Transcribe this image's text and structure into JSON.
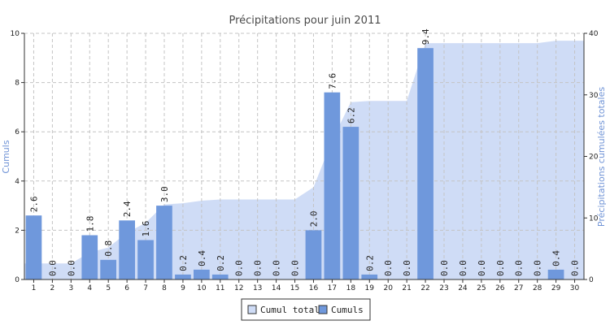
{
  "chart_data": {
    "type": "bar",
    "title": "Précipitations pour juin 2011",
    "ylabel_left": "Cumuls",
    "ylabel_right": "Précipitations cumulées totales",
    "ylim_left": [
      0,
      10
    ],
    "ylim_right": [
      0,
      40
    ],
    "yticks_left": [
      0,
      2,
      4,
      6,
      8,
      10
    ],
    "yticks_right": [
      0,
      10,
      20,
      30,
      40
    ],
    "grid": true,
    "legend_position": "bottom-center",
    "colors": {
      "bars": "#6f98dc",
      "area": "#cfdcf6",
      "axis_title": "#6f93d6"
    },
    "categories": [
      "1",
      "2",
      "3",
      "4",
      "5",
      "6",
      "7",
      "8",
      "9",
      "10",
      "11",
      "12",
      "13",
      "14",
      "15",
      "16",
      "17",
      "18",
      "19",
      "20",
      "21",
      "22",
      "23",
      "24",
      "25",
      "26",
      "27",
      "28",
      "29",
      "30"
    ],
    "series": [
      {
        "name": "Cumul total",
        "type": "area",
        "axis": "right",
        "values": [
          2.6,
          2.6,
          2.6,
          4.4,
          5.2,
          7.6,
          9.2,
          12.2,
          12.4,
          12.8,
          13.0,
          13.0,
          13.0,
          13.0,
          13.0,
          15.0,
          22.6,
          28.8,
          29.0,
          29.0,
          29.0,
          38.4,
          38.4,
          38.4,
          38.4,
          38.4,
          38.4,
          38.4,
          38.8,
          38.8
        ]
      },
      {
        "name": "Cumuls",
        "type": "bar",
        "axis": "left",
        "values": [
          2.6,
          0.0,
          0.0,
          1.8,
          0.8,
          2.4,
          1.6,
          3.0,
          0.2,
          0.4,
          0.2,
          0.0,
          0.0,
          0.0,
          0.0,
          2.0,
          7.6,
          6.2,
          0.2,
          0.0,
          0.0,
          9.4,
          0.0,
          0.0,
          0.0,
          0.0,
          0.0,
          0.0,
          0.4,
          0.0
        ],
        "data_labels": [
          "2.6",
          "0.0",
          "0.0",
          "1.8",
          "0.8",
          "2.4",
          "1.6",
          "3.0",
          "0.2",
          "0.4",
          "0.2",
          "0.0",
          "0.0",
          "0.0",
          "0.0",
          "2.0",
          "7.6",
          "6.2",
          "0.2",
          "0.0",
          "0.0",
          "9.4",
          "0.0",
          "0.0",
          "0.0",
          "0.0",
          "0.0",
          "0.0",
          "0.4",
          "0.0"
        ]
      }
    ]
  }
}
